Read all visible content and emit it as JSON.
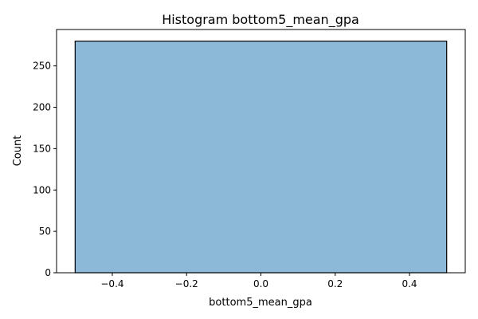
{
  "chart_data": {
    "type": "bar",
    "title": "Histogram bottom5_mean_gpa",
    "xlabel": "bottom5_mean_gpa",
    "ylabel": "Count",
    "xlim": [
      -0.55,
      0.55
    ],
    "ylim": [
      0,
      294
    ],
    "xticks": [
      -0.4,
      -0.2,
      0.0,
      0.2,
      0.4
    ],
    "xtick_labels": [
      "−0.4",
      "−0.2",
      "0.0",
      "0.2",
      "0.4"
    ],
    "yticks": [
      0,
      50,
      100,
      150,
      200,
      250
    ],
    "ytick_labels": [
      "0",
      "50",
      "100",
      "150",
      "200",
      "250"
    ],
    "bins": [
      {
        "x0": -0.5,
        "x1": 0.5,
        "count": 280
      }
    ],
    "bar_color": "#8db9d9",
    "edge_color": "#000000",
    "grid": false,
    "legend": "none"
  }
}
